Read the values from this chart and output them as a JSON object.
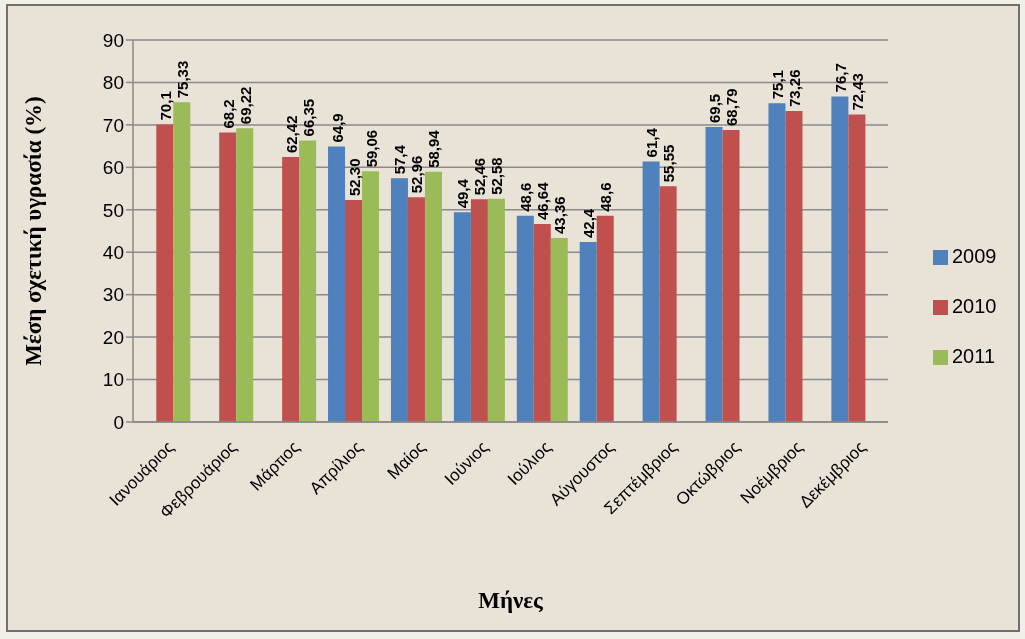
{
  "chart_data": {
    "type": "bar",
    "xlabel": "Μήνες",
    "ylabel": "Μέση σχετική υγρασία (%)",
    "categories": [
      "Ιανουάριος",
      "Φεβρουάριος",
      "Μάρτιος",
      "Απρίλιος",
      "Μαίος",
      "Ιούνιος",
      "Ιούλιος",
      "Αύγουστος",
      "Σεπτέμβριος",
      "Οκτώβριος",
      "Νοέμβριος",
      "Δεκέμβριος"
    ],
    "series": [
      {
        "name": "2009",
        "color": "#4f81bd",
        "values": [
          null,
          null,
          null,
          64.9,
          57.4,
          49.4,
          48.6,
          42.4,
          61.4,
          69.5,
          75.1,
          76.7
        ],
        "value_labels": [
          null,
          null,
          null,
          "64,9",
          "57,4",
          "49,4",
          "48,6",
          "42,4",
          "61,4",
          "69,5",
          "75,1",
          "76,7"
        ]
      },
      {
        "name": "2010",
        "color": "#c0504d",
        "values": [
          70.1,
          68.2,
          62.42,
          52.3,
          52.96,
          52.46,
          46.64,
          48.6,
          55.55,
          68.79,
          73.26,
          72.43
        ],
        "value_labels": [
          "70,1",
          "68,2",
          "62,42",
          "52,30",
          "52,96",
          "52,46",
          "46,64",
          "48,6",
          "55,55",
          "68,79",
          "73,26",
          "72,43"
        ]
      },
      {
        "name": "2011",
        "color": "#9bbb59",
        "values": [
          75.33,
          69.22,
          66.35,
          59.06,
          58.94,
          52.58,
          43.36,
          null,
          null,
          null,
          null,
          null
        ],
        "value_labels": [
          "75,33",
          "69,22",
          "66,35",
          "59,06",
          "58,94",
          "52,58",
          "43,36",
          null,
          null,
          null,
          null,
          null
        ]
      }
    ],
    "ylim": [
      0,
      90
    ],
    "yticks": [
      0,
      10,
      20,
      30,
      40,
      50,
      60,
      70,
      80,
      90
    ],
    "grid": "y",
    "legend": "right"
  }
}
